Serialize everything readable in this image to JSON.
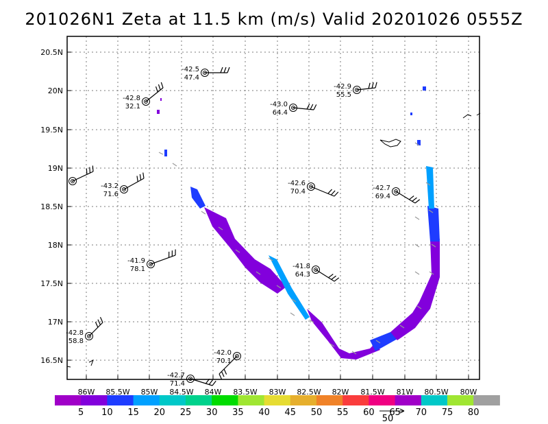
{
  "title": "201026N1 Zeta at 11.5 km (m/s) Valid 20201026 0555Z",
  "axes": {
    "lat_labels": [
      "20.5N",
      "20N",
      "19.5N",
      "19N",
      "18.5N",
      "18N",
      "17.5N",
      "17N",
      "16.5N"
    ],
    "lon_labels": [
      "86W",
      "85.5W",
      "85W",
      "84.5W",
      "84W",
      "83.5W",
      "83W",
      "82.5W",
      "82W",
      "81.5W",
      "81W",
      "80.5W",
      "80W"
    ]
  },
  "stations": [
    {
      "top": "-42.5",
      "bottom": "47.4"
    },
    {
      "top": "-42.8",
      "bottom": "32.1"
    },
    {
      "top": "-43.0",
      "bottom": "64.4"
    },
    {
      "top": "-42.9",
      "bottom": "55.5"
    },
    {
      "top": "",
      "bottom": ""
    },
    {
      "top": "-43.2",
      "bottom": "71.6"
    },
    {
      "top": "-42.6",
      "bottom": "70.4"
    },
    {
      "top": "-42.7",
      "bottom": "69.4"
    },
    {
      "top": "-41.9",
      "bottom": "78.1"
    },
    {
      "top": "-41.8",
      "bottom": "64.3"
    },
    {
      "top": "-42.8",
      "bottom": "58.8"
    },
    {
      "top": "-42.0",
      "bottom": "70.1"
    },
    {
      "top": "-42.7",
      "bottom": "71.4"
    }
  ],
  "colorbar": {
    "labels": [
      "5",
      "10",
      "15",
      "20",
      "25",
      "30",
      "35",
      "40",
      "45",
      "50",
      "55",
      "60",
      "65",
      "70",
      "75",
      "80"
    ],
    "colors": [
      "#a000c8",
      "#8200dc",
      "#1e3cff",
      "#00a0ff",
      "#00c8c8",
      "#00d28c",
      "#00dc00",
      "#a0e632",
      "#e6dc32",
      "#e6af2d",
      "#f08228",
      "#fa3c3c",
      "#f00082",
      "#a000c8",
      "#00c8c8",
      "#a0e632",
      "#a0a0a0"
    ]
  },
  "vector_key": {
    "value": "50"
  }
}
